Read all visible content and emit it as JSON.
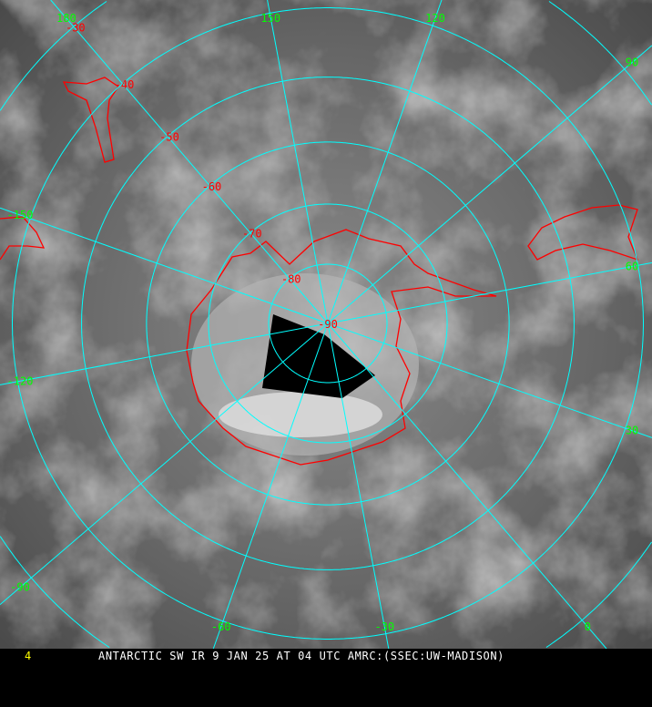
{
  "caption": {
    "frame_number": "4",
    "title": "ANTARCTIC SW IR 9 JAN 25 AT 04 UTC AMRC:(SSEC:UW-MADISON)"
  },
  "map": {
    "projection": "south polar stereographic",
    "grid_color": "#00ffff",
    "coastline_color": "#ff0000",
    "longitude_label_color": "#00ff00",
    "latitude_label_color": "#ff0000",
    "latitude_labels": [
      {
        "lat": -30,
        "text": "-30"
      },
      {
        "lat": -40,
        "text": "-40"
      },
      {
        "lat": -50,
        "text": "-50"
      },
      {
        "lat": -60,
        "text": "-60"
      },
      {
        "lat": -70,
        "text": "-70"
      },
      {
        "lat": -80,
        "text": "-80"
      },
      {
        "lat": -90,
        "text": "-90"
      }
    ],
    "latitude_circles": [
      -80,
      -70,
      -60,
      -50,
      -40,
      -30,
      -20
    ],
    "longitude_labels": [
      {
        "lon": 180,
        "text": "180"
      },
      {
        "lon": 150,
        "text": "150"
      },
      {
        "lon": 120,
        "text": "120"
      },
      {
        "lon": 90,
        "text": "90"
      },
      {
        "lon": 60,
        "text": "60"
      },
      {
        "lon": 30,
        "text": "30"
      },
      {
        "lon": 0,
        "text": "0"
      },
      {
        "lon": -30,
        "text": "-30"
      },
      {
        "lon": -60,
        "text": "-60"
      },
      {
        "lon": -90,
        "text": "-90"
      },
      {
        "lon": -120,
        "text": "-120"
      },
      {
        "lon": -150,
        "text": "-150"
      }
    ]
  }
}
